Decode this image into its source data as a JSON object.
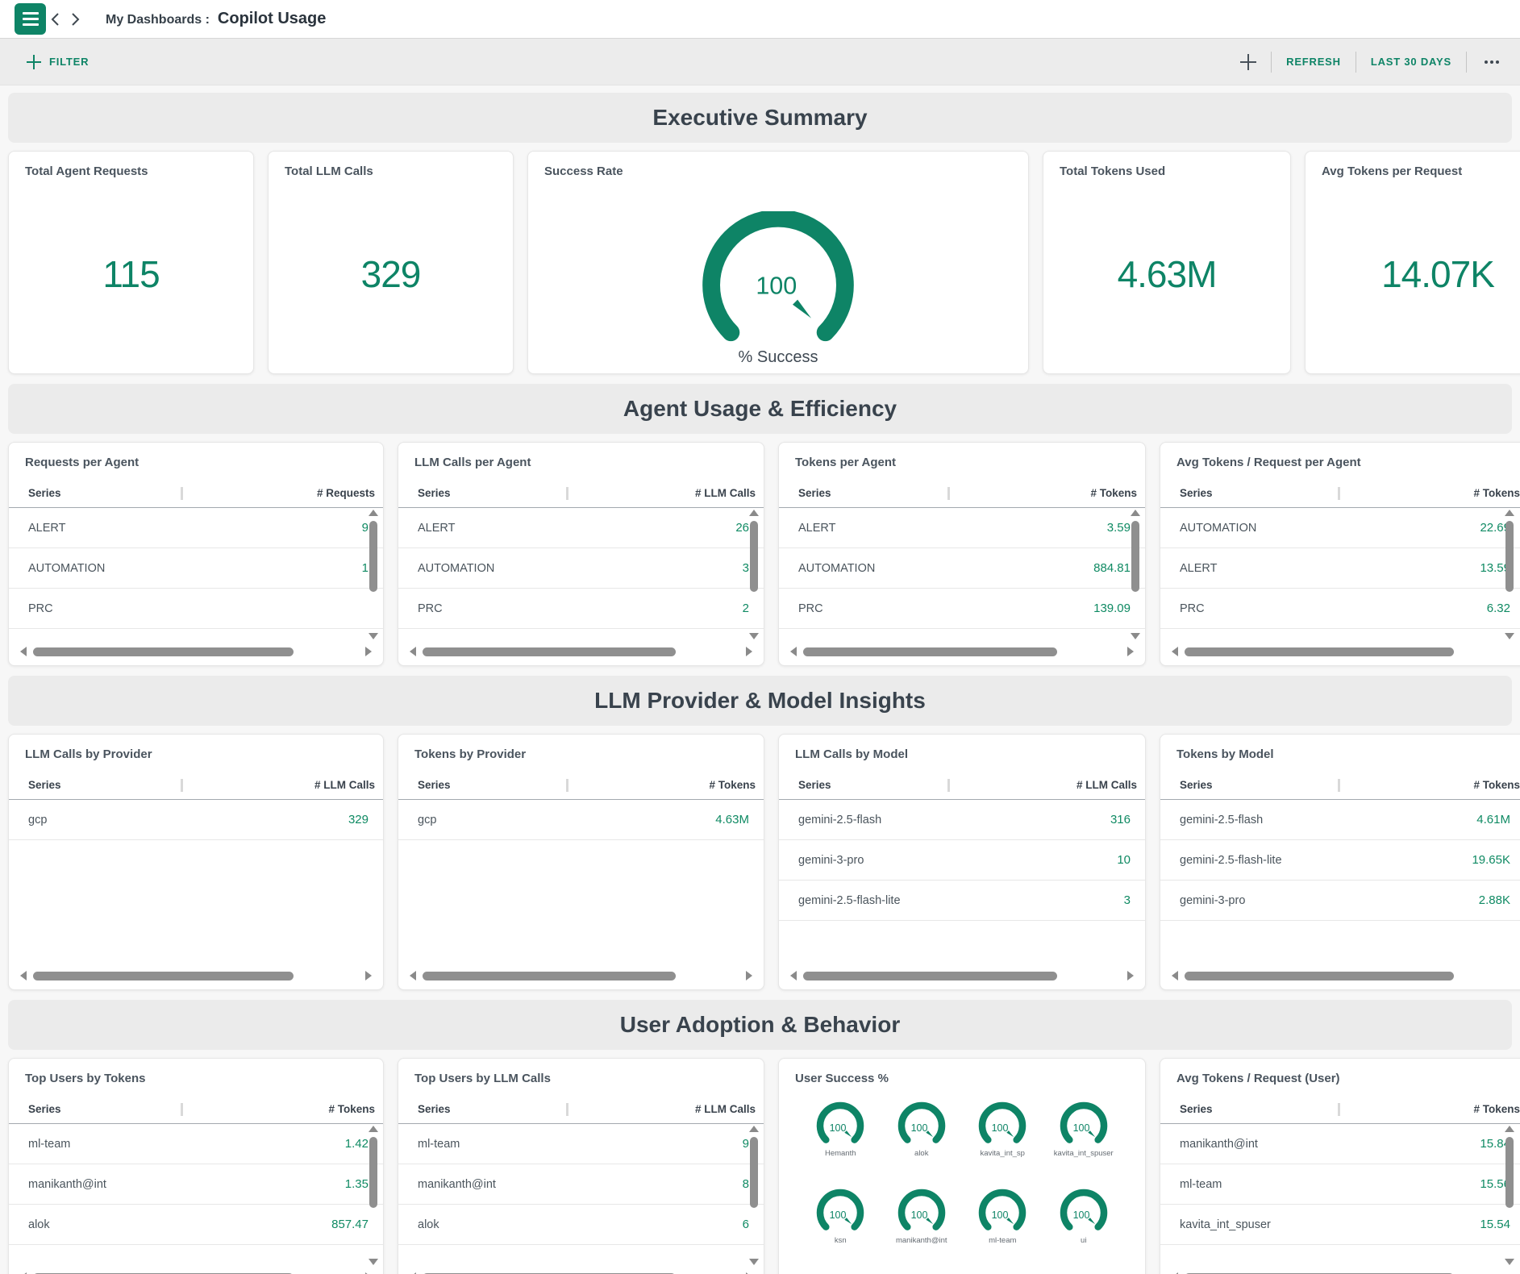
{
  "topbar": {
    "breadcrumb": "My Dashboards :",
    "title": "Copilot Usage"
  },
  "toolbar": {
    "filter_label": "FILTER",
    "refresh_label": "REFRESH",
    "timeframe_label": "LAST 30 DAYS"
  },
  "colors": {
    "accent": "#0E8466",
    "value_green": "#0F8A63",
    "scrollbar": "#8F8F8F",
    "banner": "#EBEBEB"
  },
  "sections": [
    {
      "title": "Executive Summary",
      "layout": "kpi",
      "cards": [
        {
          "type": "kpi",
          "title": "Total Agent Requests",
          "value": "115"
        },
        {
          "type": "kpi",
          "title": "Total LLM Calls",
          "value": "329"
        },
        {
          "type": "gauge",
          "title": "Success Rate",
          "value": "100",
          "caption": "% Success"
        },
        {
          "type": "kpi",
          "title": "Total Tokens Used",
          "value": "4.63M"
        },
        {
          "type": "kpi",
          "title": "Avg Tokens per Request",
          "value": "14.07K"
        }
      ]
    },
    {
      "title": "Agent Usage & Efficiency",
      "layout": "tables",
      "cards": [
        {
          "type": "table",
          "title": "Requests per Agent",
          "series_header": "Series",
          "value_header": "# Requests",
          "vscroll": true,
          "rows": [
            {
              "label": "ALERT",
              "value": "9"
            },
            {
              "label": "AUTOMATION",
              "value": "1"
            },
            {
              "label": "PRC",
              "value": ""
            }
          ]
        },
        {
          "type": "table",
          "title": "LLM Calls per Agent",
          "series_header": "Series",
          "value_header": "# LLM Calls",
          "vscroll": true,
          "rows": [
            {
              "label": "ALERT",
              "value": "26"
            },
            {
              "label": "AUTOMATION",
              "value": "3"
            },
            {
              "label": "PRC",
              "value": "2"
            }
          ]
        },
        {
          "type": "table",
          "title": "Tokens per Agent",
          "series_header": "Series",
          "value_header": "# Tokens",
          "vscroll": true,
          "rows": [
            {
              "label": "ALERT",
              "value": "3.59"
            },
            {
              "label": "AUTOMATION",
              "value": "884.81"
            },
            {
              "label": "PRC",
              "value": "139.09"
            }
          ]
        },
        {
          "type": "table",
          "title": "Avg Tokens / Request per Agent",
          "series_header": "Series",
          "value_header": "# Tokens",
          "vscroll": true,
          "rows": [
            {
              "label": "AUTOMATION",
              "value": "22.69"
            },
            {
              "label": "ALERT",
              "value": "13.59"
            },
            {
              "label": "PRC",
              "value": "6.32"
            }
          ]
        }
      ]
    },
    {
      "title": "LLM Provider & Model Insights",
      "layout": "tables-tall",
      "cards": [
        {
          "type": "table",
          "title": "LLM Calls by Provider",
          "series_header": "Series",
          "value_header": "# LLM Calls",
          "vscroll": false,
          "rows": [
            {
              "label": "gcp",
              "value": "329"
            }
          ]
        },
        {
          "type": "table",
          "title": "Tokens by Provider",
          "series_header": "Series",
          "value_header": "# Tokens",
          "vscroll": false,
          "rows": [
            {
              "label": "gcp",
              "value": "4.63M"
            }
          ]
        },
        {
          "type": "table",
          "title": "LLM Calls by Model",
          "series_header": "Series",
          "value_header": "# LLM Calls",
          "vscroll": false,
          "rows": [
            {
              "label": "gemini-2.5-flash",
              "value": "316"
            },
            {
              "label": "gemini-3-pro",
              "value": "10"
            },
            {
              "label": "gemini-2.5-flash-lite",
              "value": "3"
            }
          ]
        },
        {
          "type": "table",
          "title": "Tokens by Model",
          "series_header": "Series",
          "value_header": "# Tokens",
          "vscroll": false,
          "rows": [
            {
              "label": "gemini-2.5-flash",
              "value": "4.61M"
            },
            {
              "label": "gemini-2.5-flash-lite",
              "value": "19.65K"
            },
            {
              "label": "gemini-3-pro",
              "value": "2.88K"
            }
          ]
        }
      ]
    },
    {
      "title": "User Adoption & Behavior",
      "layout": "tables",
      "cards": [
        {
          "type": "table",
          "title": "Top Users by Tokens",
          "series_header": "Series",
          "value_header": "# Tokens",
          "vscroll": true,
          "rows": [
            {
              "label": "ml-team",
              "value": "1.42"
            },
            {
              "label": "manikanth@int",
              "value": "1.35"
            },
            {
              "label": "alok",
              "value": "857.47"
            }
          ]
        },
        {
          "type": "table",
          "title": "Top Users by LLM Calls",
          "series_header": "Series",
          "value_header": "# LLM Calls",
          "vscroll": true,
          "rows": [
            {
              "label": "ml-team",
              "value": "9"
            },
            {
              "label": "manikanth@int",
              "value": "8"
            },
            {
              "label": "alok",
              "value": "6"
            }
          ]
        },
        {
          "type": "gauges",
          "title": "User Success %",
          "items": [
            {
              "label": "Hemanth",
              "value": "100"
            },
            {
              "label": "alok",
              "value": "100"
            },
            {
              "label": "kavita_int_sp",
              "value": "100"
            },
            {
              "label": "kavita_int_spuser",
              "value": "100"
            },
            {
              "label": "ksn",
              "value": "100"
            },
            {
              "label": "manikanth@int",
              "value": "100"
            },
            {
              "label": "ml-team",
              "value": "100"
            },
            {
              "label": "ui",
              "value": "100"
            }
          ]
        },
        {
          "type": "table",
          "title": "Avg Tokens / Request (User)",
          "series_header": "Series",
          "value_header": "# Tokens",
          "vscroll": true,
          "rows": [
            {
              "label": "manikanth@int",
              "value": "15.84"
            },
            {
              "label": "ml-team",
              "value": "15.56"
            },
            {
              "label": "kavita_int_spuser",
              "value": "15.54"
            }
          ]
        }
      ]
    }
  ]
}
